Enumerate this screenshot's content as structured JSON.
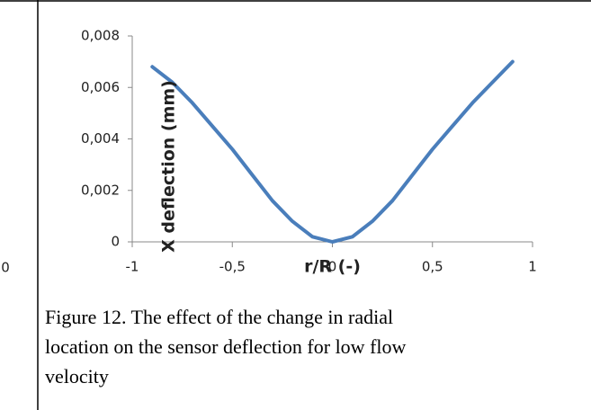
{
  "left_fragment": "0",
  "chart_data": {
    "type": "line",
    "y_label": "X deflection (mm)",
    "x_label": "r/R (-)",
    "x": [
      -0.9,
      -0.8,
      -0.7,
      -0.6,
      -0.5,
      -0.4,
      -0.3,
      -0.2,
      -0.1,
      0,
      0.1,
      0.2,
      0.3,
      0.4,
      0.5,
      0.6,
      0.7,
      0.8,
      0.9
    ],
    "values": [
      0.0068,
      0.0062,
      0.0054,
      0.0045,
      0.0036,
      0.0026,
      0.0016,
      0.0008,
      0.0002,
      0,
      0.0002,
      0.0008,
      0.0016,
      0.0026,
      0.0036,
      0.0045,
      0.0054,
      0.0062,
      0.007
    ],
    "color": "#4a7ebb",
    "xlim": [
      -1,
      1
    ],
    "xticks": [
      -1,
      {
        "value": -0.5,
        "label": "-0,5"
      },
      0,
      {
        "value": 0.5,
        "label": "0,5"
      },
      1
    ],
    "ylim": [
      0,
      0.008
    ],
    "yticks": [
      0,
      {
        "value": 0.002,
        "label": "0,002"
      },
      {
        "value": 0.004,
        "label": "0,004"
      },
      {
        "value": 0.006,
        "label": "0,006"
      },
      {
        "value": 0.008,
        "label": "0,008"
      }
    ],
    "grid": false
  },
  "caption": {
    "lines": [
      "Figure 12. The effect of the change in radial",
      "location on the sensor deflection for low flow",
      "velocity"
    ]
  }
}
